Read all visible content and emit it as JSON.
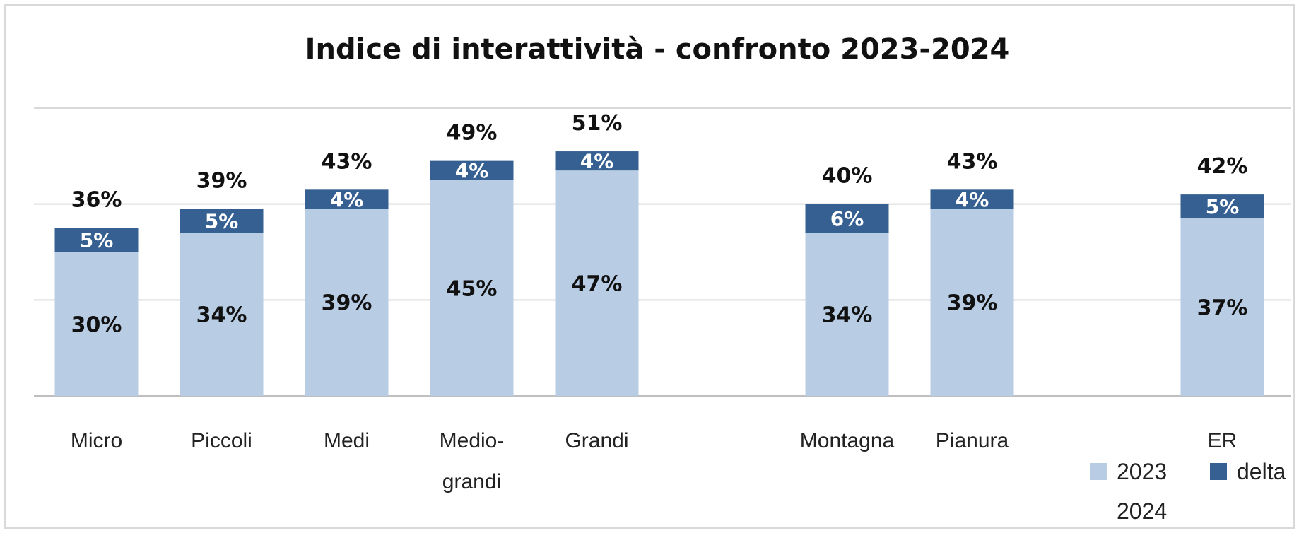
{
  "chart_data": {
    "type": "bar",
    "stacked": true,
    "title": "Indice di interattività - confronto 2023-2024",
    "categories": [
      [
        "Micro"
      ],
      [
        "Piccoli"
      ],
      [
        "Medi"
      ],
      [
        "Medio-",
        "grandi"
      ],
      [
        "Grandi"
      ],
      [
        "Montagna"
      ],
      [
        "Pianura"
      ],
      [
        "ER"
      ]
    ],
    "groups": [
      [
        0,
        1,
        2,
        3,
        4
      ],
      [
        5,
        6
      ],
      [
        7
      ]
    ],
    "series": [
      {
        "name": "2023",
        "values": [
          30,
          34,
          39,
          45,
          47,
          34,
          39,
          37
        ],
        "labels": [
          "30%",
          "34%",
          "39%",
          "45%",
          "47%",
          "34%",
          "39%",
          "37%"
        ],
        "color": "#b8cce4"
      },
      {
        "name": "delta",
        "values": [
          5,
          5,
          4,
          4,
          4,
          6,
          4,
          5
        ],
        "labels": [
          "5%",
          "5%",
          "4%",
          "4%",
          "4%",
          "6%",
          "4%",
          "5%"
        ],
        "color": "#366092"
      }
    ],
    "totals": {
      "name": "2024",
      "values": [
        36,
        39,
        43,
        49,
        51,
        40,
        43,
        42
      ],
      "labels": [
        "36%",
        "39%",
        "43%",
        "49%",
        "51%",
        "40%",
        "43%",
        "42%"
      ]
    },
    "ylim": [
      0,
      60
    ],
    "grid": true,
    "legend_placement": "bottom-right"
  }
}
